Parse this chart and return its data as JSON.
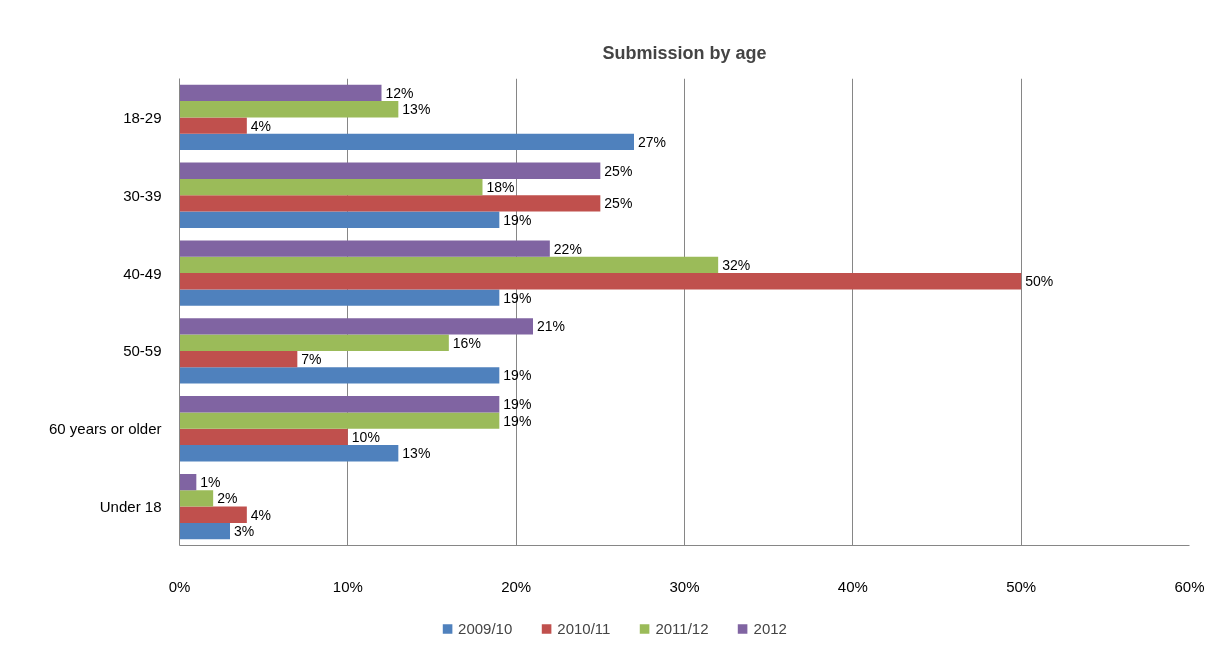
{
  "chart_data": {
    "type": "bar",
    "orientation": "horizontal",
    "title": "Submission by age",
    "categories": [
      "18-29",
      "30-39",
      "40-49",
      "50-59",
      "60 years or older",
      "Under 18"
    ],
    "series": [
      {
        "name": "2009/10",
        "color": "#4f81bd",
        "values": [
          27,
          19,
          19,
          19,
          13,
          3
        ],
        "value_labels": [
          "27%",
          "19%",
          "19%",
          "19%",
          "13%",
          "3%"
        ]
      },
      {
        "name": "2010/11",
        "color": "#c0504d",
        "values": [
          4,
          25,
          50,
          7,
          10,
          4
        ],
        "value_labels": [
          "4%",
          "25%",
          "50%",
          "7%",
          "10%",
          "4%"
        ]
      },
      {
        "name": "2011/12",
        "color": "#9bbb59",
        "values": [
          13,
          18,
          32,
          16,
          19,
          2
        ],
        "value_labels": [
          "13%",
          "18%",
          "32%",
          "16%",
          "19%",
          "2%"
        ]
      },
      {
        "name": "2012",
        "color": "#8064a2",
        "values": [
          12,
          25,
          22,
          21,
          19,
          1
        ],
        "value_labels": [
          "12%",
          "25%",
          "22%",
          "21%",
          "19%",
          "1%"
        ]
      }
    ],
    "xlim": [
      0,
      60
    ],
    "xticks": [
      {
        "value": 0,
        "label": "0%"
      },
      {
        "value": 10,
        "label": "10%"
      },
      {
        "value": 20,
        "label": "20%"
      },
      {
        "value": 30,
        "label": "30%"
      },
      {
        "value": 40,
        "label": "40%"
      },
      {
        "value": 50,
        "label": "50%"
      },
      {
        "value": 60,
        "label": "60%"
      }
    ],
    "grid": "x",
    "legend": "bottom"
  }
}
